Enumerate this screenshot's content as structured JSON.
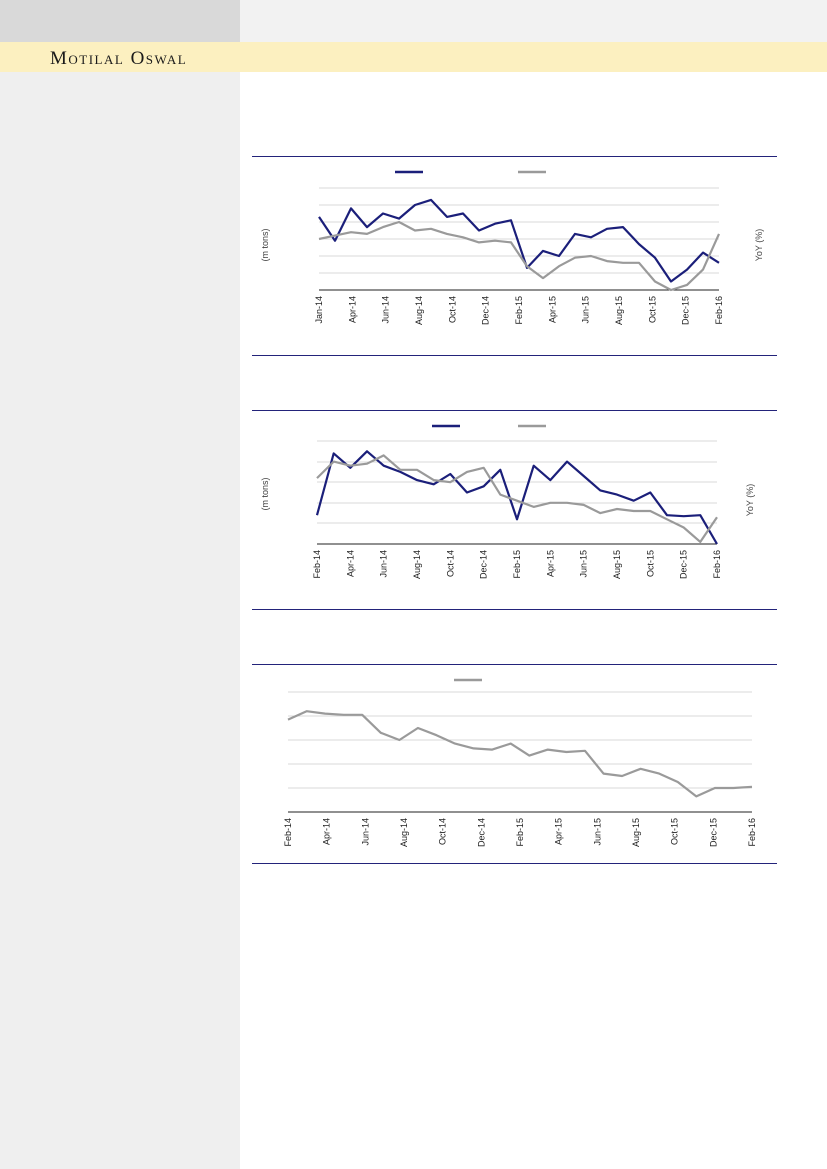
{
  "header": {
    "brand": "Motilal Oswal"
  },
  "colors": {
    "navy": "#1b1f7a",
    "grey": "#9a9a9a",
    "rule": "#23237a",
    "grid": "#d8d8d8"
  },
  "chart_data": [
    {
      "type": "line",
      "y_label_left": "(m tons)",
      "y_label_right": "YoY (%)",
      "x_ticks": [
        "Jan-14",
        "Apr-14",
        "Jun-14",
        "Aug-14",
        "Oct-14",
        "Dec-14",
        "Feb-15",
        "Apr-15",
        "Jun-15",
        "Aug-15",
        "Oct-15",
        "Dec-15",
        "Feb-16"
      ],
      "ylim": [
        0,
        6
      ],
      "series": [
        {
          "color": "navy",
          "values": [
            4.3,
            2.9,
            4.8,
            3.7,
            4.5,
            4.2,
            5.0,
            5.3,
            4.3,
            4.5,
            3.5,
            3.9,
            4.1,
            1.3,
            2.3,
            2.0,
            3.3,
            3.1,
            3.6,
            3.7,
            2.7,
            1.9,
            0.5,
            1.2,
            2.2,
            1.6
          ]
        },
        {
          "color": "grey",
          "values": [
            3.0,
            3.2,
            3.4,
            3.3,
            3.7,
            4.0,
            3.5,
            3.6,
            3.3,
            3.1,
            2.8,
            2.9,
            2.8,
            1.4,
            0.7,
            1.4,
            1.9,
            2.0,
            1.7,
            1.6,
            1.6,
            0.5,
            0.0,
            0.3,
            1.2,
            3.3
          ]
        }
      ]
    },
    {
      "type": "line",
      "y_label_left": "(m tons)",
      "y_label_right": "YoY (%)",
      "x_ticks": [
        "Feb-14",
        "Apr-14",
        "Jun-14",
        "Aug-14",
        "Oct-14",
        "Dec-14",
        "Feb-15",
        "Apr-15",
        "Jun-15",
        "Aug-15",
        "Oct-15",
        "Dec-15",
        "Feb-16"
      ],
      "ylim": [
        0,
        5
      ],
      "series": [
        {
          "color": "navy",
          "values": [
            1.4,
            4.4,
            3.7,
            4.5,
            3.8,
            3.5,
            3.1,
            2.9,
            3.4,
            2.5,
            2.8,
            3.6,
            1.2,
            3.8,
            3.1,
            4.0,
            3.3,
            2.6,
            2.4,
            2.1,
            2.5,
            1.4,
            1.35,
            1.4,
            0.0
          ]
        },
        {
          "color": "grey",
          "values": [
            3.2,
            4.0,
            3.8,
            3.9,
            4.3,
            3.6,
            3.6,
            3.1,
            3.0,
            3.5,
            3.7,
            2.4,
            2.1,
            1.8,
            2.0,
            2.0,
            1.9,
            1.5,
            1.7,
            1.6,
            1.6,
            1.2,
            0.8,
            0.1,
            1.3
          ]
        }
      ]
    },
    {
      "type": "line",
      "x_ticks": [
        "Feb-14",
        "Apr-14",
        "Jun-14",
        "Aug-14",
        "Oct-14",
        "Dec-14",
        "Feb-15",
        "Apr-15",
        "Jun-15",
        "Aug-15",
        "Oct-15",
        "Dec-15",
        "Feb-16"
      ],
      "ylim": [
        0,
        5
      ],
      "series": [
        {
          "color": "grey",
          "values": [
            3.85,
            4.2,
            4.1,
            4.05,
            4.05,
            3.3,
            3.0,
            3.5,
            3.2,
            2.85,
            2.65,
            2.6,
            2.85,
            2.35,
            2.6,
            2.5,
            2.55,
            1.6,
            1.5,
            1.8,
            1.6,
            1.25,
            0.65,
            1.0,
            1.0,
            1.05
          ]
        }
      ]
    }
  ]
}
